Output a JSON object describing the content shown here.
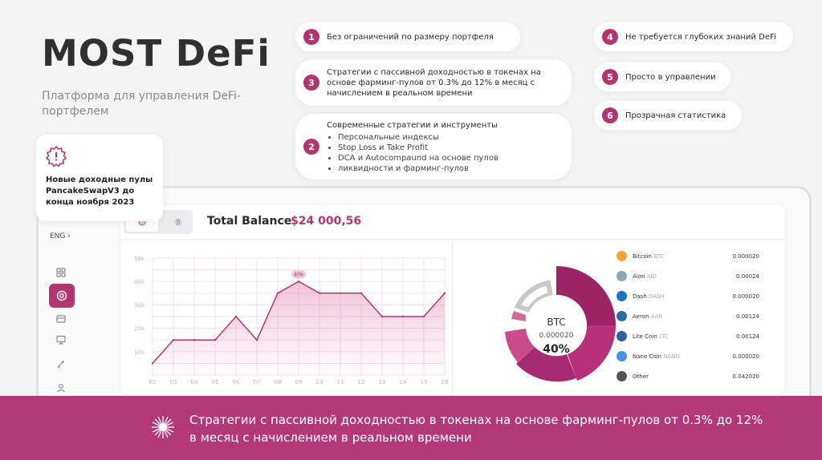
{
  "brand": {
    "title": "MOST DeFi",
    "subtitle": "Платформа для управления DeFi-портфелем"
  },
  "features": [
    {
      "num": "1",
      "text": "Без ограничений по размеру портфеля"
    },
    {
      "num": "3",
      "text": "Стратегии с пассивной доходностью в токенах на основе фарминг-пулов от 0.3% до 12% в месяц с начислением в реальном времени"
    },
    {
      "num": "2",
      "text": "Современные стратегии и инструменты",
      "items": [
        "Персональные индексы",
        "Stop Loss и Take Profit",
        "DCA и Autocompaund на основе пулов",
        "ликвидности и фарминг-пулов"
      ]
    },
    {
      "num": "4",
      "text": "Не требуется глубоких знаний DeFi"
    },
    {
      "num": "5",
      "text": "Просто в управлении"
    },
    {
      "num": "6",
      "text": "Прозрачная статистика"
    }
  ],
  "notice": {
    "text": "Новые доходные пулы PancakeSwapV3 до конца ноября 2023",
    "icon": "warning-icon"
  },
  "sidebar": {
    "lang": "ENG",
    "icons": [
      "grid-icon",
      "pool-icon",
      "wallet-icon",
      "monitor-icon",
      "rocket-icon",
      "user-icon"
    ]
  },
  "dashboard": {
    "total_label": "Total Balance",
    "total_value": "$24 000,56",
    "donut": {
      "label": "BTC",
      "value": "0.000020",
      "percent": "40%"
    },
    "coins": [
      {
        "name": "Bitcoin",
        "sym": "BTC",
        "value": "0.000020",
        "color": "#f6a334",
        "icon": "bitcoin-icon"
      },
      {
        "name": "Aion",
        "sym": "AID",
        "value": "0.00024",
        "color": "#8aa3b5",
        "icon": "aion-icon"
      },
      {
        "name": "Dash",
        "sym": "DASH",
        "value": "0.000020",
        "color": "#1c75bc",
        "icon": "dash-icon"
      },
      {
        "name": "Aeron",
        "sym": "AAR",
        "value": "0.00124",
        "color": "#2d6a9f",
        "icon": "aeron-icon"
      },
      {
        "name": "Lite Coin",
        "sym": "LTC",
        "value": "0.00124",
        "color": "#345d9d",
        "icon": "litecoin-icon"
      },
      {
        "name": "Nano Coin",
        "sym": "NANO",
        "value": "0.000020",
        "color": "#4a90e2",
        "icon": "nano-icon"
      },
      {
        "name": "Other",
        "sym": "",
        "value": "0.042020",
        "color": "#555555",
        "icon": "more-icon"
      }
    ]
  },
  "chart_data": {
    "type": "area",
    "x": [
      "02",
      "03",
      "04",
      "05",
      "06",
      "07",
      "08",
      "09",
      "10",
      "11",
      "12",
      "13",
      "14",
      "15",
      "16"
    ],
    "y": [
      5,
      15,
      15,
      15,
      25,
      15,
      35,
      40,
      35,
      35,
      35,
      25,
      25,
      25,
      35
    ],
    "yticks": [
      "10k",
      "20k",
      "30k",
      "40k",
      "50k"
    ],
    "ylim": [
      0,
      50
    ],
    "highlight_label": "40k",
    "color": "#b3356f",
    "grid": true
  },
  "banner": {
    "text": "Стратегии с пассивной доходностью в токенах на основе фарминг-пулов от 0.3% до 12% в месяц с начислением в реальном времени"
  }
}
